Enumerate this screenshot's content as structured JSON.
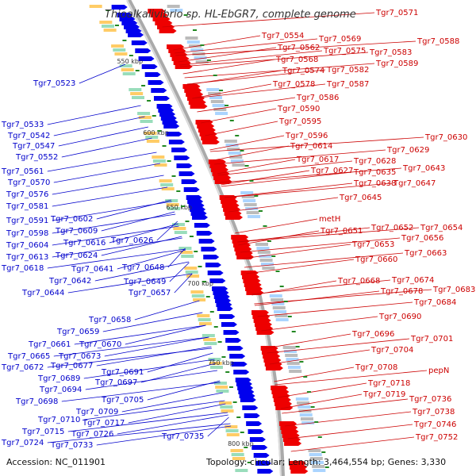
{
  "title": "Thioalkalivibrio sp. HL-EbGR7, complete genome",
  "footer": {
    "accession": "Accession: NC_011901",
    "summary": "Topology: circular; Length: 3,464,554 bp; Genes: 3,330"
  },
  "colors": {
    "left_labels": "#0000cc",
    "right_labels": "#cc0000",
    "backbone": "#999999",
    "ticks": "#228822"
  },
  "scale_ticks": [
    "550 kbp",
    "600 kbp",
    "650 kbp",
    "700 kbp",
    "750 kbp",
    "800 kbp"
  ],
  "left_labels": [
    "Tgr7_0523",
    "Tgr7_0533",
    "Tgr7_0542",
    "Tgr7_0547",
    "Tgr7_0552",
    "Tgr7_0561",
    "Tgr7_0570",
    "Tgr7_0576",
    "Tgr7_0581",
    "Tgr7_0591",
    "Tgr7_0602",
    "Tgr7_0598",
    "Tgr7_0609",
    "Tgr7_0604",
    "Tgr7_0616",
    "Tgr7_0626",
    "Tgr7_0613",
    "Tgr7_0624",
    "Tgr7_0618",
    "Tgr7_0641",
    "Tgr7_0648",
    "Tgr7_0642",
    "Tgr7_0649",
    "Tgr7_0644",
    "Tgr7_0657",
    "Tgr7_0658",
    "Tgr7_0659",
    "Tgr7_0661",
    "Tgr7_0670",
    "Tgr7_0665",
    "Tgr7_0673",
    "Tgr7_0672",
    "Tgr7_0677",
    "Tgr7_0691",
    "Tgr7_0689",
    "Tgr7_0697",
    "Tgr7_0694",
    "Tgr7_0698",
    "Tgr7_0705",
    "Tgr7_0709",
    "Tgr7_0710",
    "Tgr7_0717",
    "Tgr7_0715",
    "Tgr7_0726",
    "Tgr7_0724",
    "Tgr7_0733",
    "Tgr7_0735"
  ],
  "right_labels": [
    "Tgr7_0571",
    "Tgr7_0554",
    "Tgr7_0569",
    "Tgr7_0588",
    "Tgr7_0562",
    "Tgr7_0575",
    "Tgr7_0583",
    "Tgr7_0568",
    "Tgr7_0582",
    "Tgr7_0589",
    "Tgr7_0574",
    "Tgr7_0578",
    "Tgr7_0587",
    "Tgr7_0586",
    "Tgr7_0590",
    "Tgr7_0595",
    "Tgr7_0596",
    "Tgr7_0630",
    "Tgr7_0614",
    "Tgr7_0629",
    "Tgr7_0628",
    "Tgr7_0617",
    "Tgr7_0627",
    "Tgr7_0635",
    "Tgr7_0643",
    "Tgr7_0638",
    "Tgr7_0647",
    "Tgr7_0645",
    "metH",
    "Tgr7_0651",
    "Tgr7_0652",
    "Tgr7_0654",
    "Tgr7_0656",
    "Tgr7_0653",
    "Tgr7_0663",
    "Tgr7_0660",
    "Tgr7_0668",
    "Tgr7_0674",
    "Tgr7_0683",
    "Tgr7_0678",
    "Tgr7_0684",
    "Tgr7_0690",
    "Tgr7_0696",
    "Tgr7_0701",
    "Tgr7_0704",
    "Tgr7_0708",
    "pepN",
    "Tgr7_0718",
    "Tgr7_0719",
    "Tgr7_0736",
    "Tgr7_0738",
    "Tgr7_0746",
    "Tgr7_0752"
  ]
}
